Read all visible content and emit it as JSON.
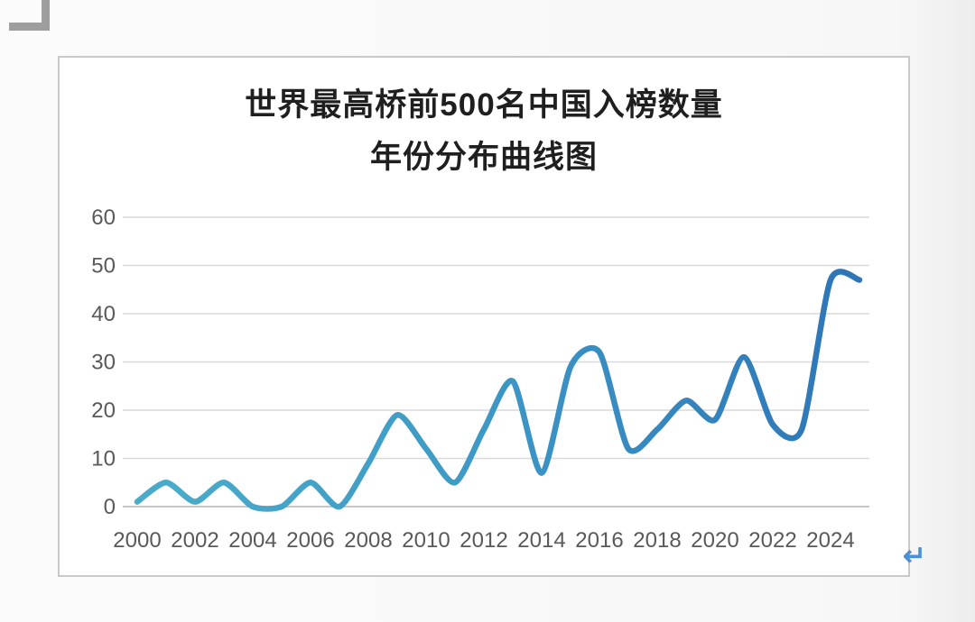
{
  "page": {
    "return_mark": "↵"
  },
  "chart": {
    "title_line1": "世界最高桥前500名中国入榜数量",
    "title_line2": "年份分布曲线图"
  },
  "colors": {
    "line_gradient_start": "#4BACC9",
    "line_gradient_mid": "#3E9AC6",
    "line_gradient_end": "#2E75B6",
    "gridline": "#d9d9d9",
    "baseline": "#b3b3b3",
    "axis_label": "#595959",
    "title_text": "#1f1f1f",
    "return_mark": "#4a90d9",
    "chart_border": "#c9c9c9"
  },
  "chart_data": {
    "type": "line",
    "title": "世界最高桥前500名中国入榜数量年份分布曲线图",
    "xlabel": "",
    "ylabel": "",
    "x": [
      2000,
      2001,
      2002,
      2003,
      2004,
      2005,
      2006,
      2007,
      2008,
      2009,
      2010,
      2011,
      2012,
      2013,
      2014,
      2015,
      2016,
      2017,
      2018,
      2019,
      2020,
      2021,
      2022,
      2023,
      2024,
      2025
    ],
    "values": [
      1,
      5,
      1,
      5,
      0,
      0,
      5,
      0,
      9,
      19,
      12,
      5,
      16,
      26,
      7,
      29,
      32,
      12,
      16,
      22,
      18,
      31,
      17,
      16,
      47,
      47
    ],
    "series_name": "中国入榜数量",
    "x_tick_labels": [
      "2000",
      "2002",
      "2004",
      "2006",
      "2008",
      "2010",
      "2012",
      "2014",
      "2016",
      "2018",
      "2020",
      "2022",
      "2024"
    ],
    "y_ticks": [
      0,
      10,
      20,
      30,
      40,
      50,
      60
    ],
    "xlim": [
      2000,
      2025
    ],
    "ylim": [
      0,
      60
    ],
    "grid": "horizontal-only",
    "legend": "none",
    "smooth": true
  }
}
